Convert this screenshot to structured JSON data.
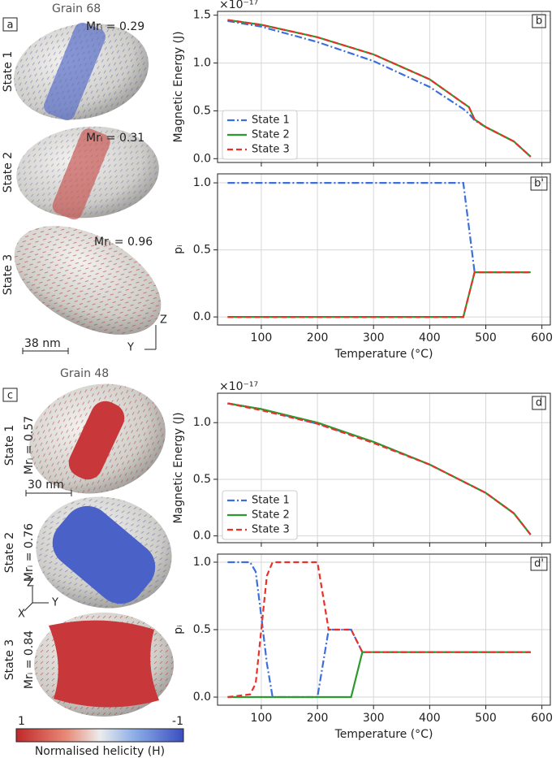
{
  "panel_a": {
    "tag": "a",
    "grain": "Grain 68",
    "states": [
      {
        "name": "State 1",
        "mr": "Mrᵢ = 0.29"
      },
      {
        "name": "State 2",
        "mr": "Mrᵢ = 0.31"
      },
      {
        "name": "State 3",
        "mr": "Mrᵢ = 0.96"
      }
    ],
    "scale": "38 nm",
    "axis_z": "Z",
    "axis_y": "Y"
  },
  "panel_c": {
    "tag": "c",
    "grain": "Grain 48",
    "states": [
      {
        "name": "State 1",
        "mr": "Mrᵢ = 0.57"
      },
      {
        "name": "State 2",
        "mr": "Mrᵢ = 0.76"
      },
      {
        "name": "State 3",
        "mr": "Mrᵢ = 0.84"
      }
    ],
    "scale": "30 nm",
    "axis_z": "Z",
    "axis_y": "Y",
    "axis_x": "X"
  },
  "colorbar": {
    "ticks": [
      1,
      -1
    ],
    "label": "Normalised helicity (H)"
  },
  "chart_data": [
    {
      "type": "line",
      "panel_label": "b",
      "ylabel": "Magnetic Energy (J)",
      "offset_label": "×10⁻¹⁷",
      "x": [
        40,
        100,
        200,
        300,
        400,
        460,
        470,
        480,
        500,
        550,
        580
      ],
      "series": [
        {
          "name": "State 1",
          "color": "#3d6fdc",
          "linestyle": "dashdot",
          "values": [
            1.44,
            1.38,
            1.22,
            1.02,
            0.75,
            0.52,
            0.47,
            0.4,
            0.33,
            0.18,
            0.02
          ]
        },
        {
          "name": "State 2",
          "color": "#2e9a2e",
          "linestyle": "solid",
          "values": [
            1.45,
            1.4,
            1.27,
            1.09,
            0.83,
            0.58,
            0.54,
            0.41,
            0.33,
            0.18,
            0.02
          ]
        },
        {
          "name": "State 3",
          "color": "#e8312a",
          "linestyle": "dashed",
          "values": [
            1.45,
            1.4,
            1.27,
            1.09,
            0.83,
            0.58,
            0.54,
            0.41,
            0.33,
            0.18,
            0.02
          ]
        }
      ],
      "xlim": [
        22,
        615
      ],
      "xticks": [
        100,
        200,
        300,
        400,
        500,
        600
      ],
      "show_xtick_labels": false,
      "ylim": [
        -0.04,
        1.54
      ],
      "yticks": [
        {
          "value": 0,
          "label": "0.0"
        },
        0.5,
        {
          "value": 1,
          "label": "1.0"
        },
        1.5
      ],
      "grid": true,
      "legend": "lower left"
    },
    {
      "type": "line",
      "panel_label": "b'",
      "ylabel": "pᵢ",
      "xlabel": "Temperature (°C)",
      "x": [
        40,
        460,
        480,
        580
      ],
      "series": [
        {
          "name": "State 1",
          "color": "#3d6fdc",
          "linestyle": "dashdot",
          "values": [
            1,
            1,
            0.333,
            0.333
          ]
        },
        {
          "name": "State 2",
          "color": "#2e9a2e",
          "linestyle": "solid",
          "values": [
            0,
            0,
            0.333,
            0.333
          ]
        },
        {
          "name": "State 3",
          "color": "#e8312a",
          "linestyle": "dashed",
          "values": [
            0,
            0,
            0.333,
            0.333
          ]
        }
      ],
      "xlim": [
        22,
        615
      ],
      "xticks": [
        100,
        200,
        300,
        400,
        500,
        600
      ],
      "show_xtick_labels": true,
      "ylim": [
        -0.06,
        1.067
      ],
      "yticks": [
        {
          "value": 0,
          "label": "0.0"
        },
        0.5,
        {
          "value": 1,
          "label": "1.0"
        }
      ],
      "grid": true
    },
    {
      "type": "line",
      "panel_label": "d",
      "ylabel": "Magnetic Energy (J)",
      "offset_label": "×10⁻¹⁷",
      "x": [
        40,
        100,
        200,
        300,
        400,
        500,
        550,
        580
      ],
      "series": [
        {
          "name": "State 1",
          "color": "#3d6fdc",
          "linestyle": "dashdot",
          "values": [
            1.17,
            1.12,
            0.99,
            0.83,
            0.63,
            0.38,
            0.2,
            0.01
          ]
        },
        {
          "name": "State 2",
          "color": "#2e9a2e",
          "linestyle": "solid",
          "values": [
            1.17,
            1.12,
            1.0,
            0.83,
            0.63,
            0.38,
            0.2,
            0.01
          ]
        },
        {
          "name": "State 3",
          "color": "#e8312a",
          "linestyle": "dashed",
          "values": [
            1.17,
            1.11,
            0.99,
            0.82,
            0.63,
            0.38,
            0.2,
            0.01
          ]
        }
      ],
      "xlim": [
        22,
        615
      ],
      "xticks": [
        100,
        200,
        300,
        400,
        500,
        600
      ],
      "show_xtick_labels": false,
      "ylim": [
        -0.06,
        1.26
      ],
      "yticks": [
        {
          "value": 0,
          "label": "0.0"
        },
        0.5,
        {
          "value": 1,
          "label": "1.0"
        }
      ],
      "grid": true,
      "legend": "lower left"
    },
    {
      "type": "line",
      "panel_label": "d'",
      "ylabel": "pᵢ",
      "xlabel": "Temperature (°C)",
      "x": [
        40,
        80,
        90,
        100,
        110,
        120,
        200,
        220,
        260,
        280,
        580
      ],
      "series": [
        {
          "name": "State 1",
          "color": "#3d6fdc",
          "linestyle": "dashdot",
          "values": [
            1,
            1,
            0.93,
            0.6,
            0.25,
            0,
            0,
            0.5,
            0.5,
            0.333,
            0.333
          ]
        },
        {
          "name": "State 2",
          "color": "#2e9a2e",
          "linestyle": "solid",
          "values": [
            0,
            0,
            0,
            0,
            0,
            0,
            0,
            0,
            0,
            0.333,
            0.333
          ]
        },
        {
          "name": "State 3",
          "color": "#e8312a",
          "linestyle": "dashed",
          "values": [
            0,
            0.02,
            0.1,
            0.5,
            0.9,
            1,
            1,
            0.5,
            0.5,
            0.333,
            0.333
          ]
        }
      ],
      "xlim": [
        22,
        615
      ],
      "xticks": [
        100,
        200,
        300,
        400,
        500,
        600
      ],
      "show_xtick_labels": true,
      "ylim": [
        -0.06,
        1.06
      ],
      "yticks": [
        {
          "value": 0,
          "label": "0.0"
        },
        0.5,
        {
          "value": 1,
          "label": "1.0"
        }
      ],
      "grid": true
    }
  ]
}
